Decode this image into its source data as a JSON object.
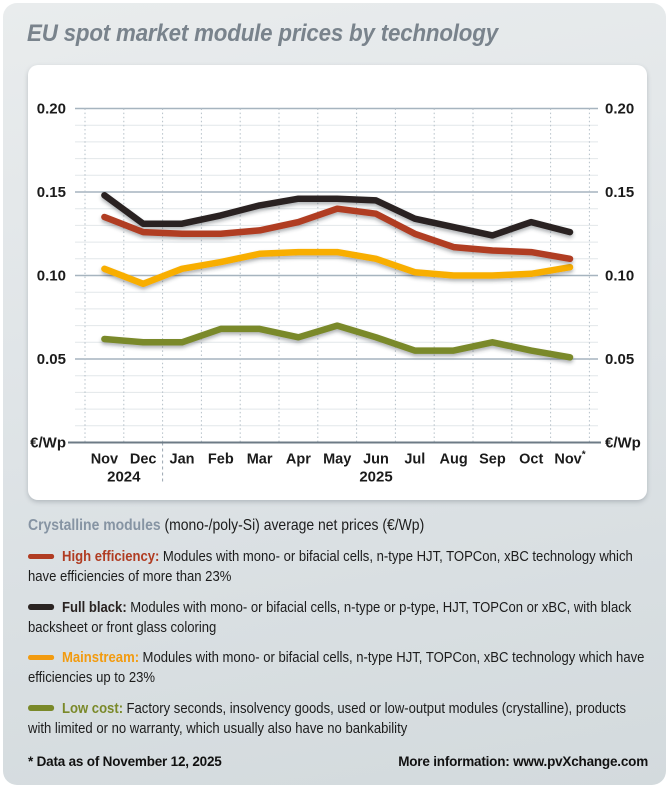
{
  "title": "EU spot market module prices by technology",
  "chart_data": {
    "type": "line",
    "x": [
      "Nov",
      "Dec",
      "Jan",
      "Feb",
      "Mar",
      "Apr",
      "May",
      "Jun",
      "Jul",
      "Aug",
      "Sep",
      "Oct",
      "Nov*"
    ],
    "year_labels": [
      {
        "label": "2024",
        "center_index": 0.5
      },
      {
        "label": "2025",
        "center_index": 7
      }
    ],
    "unit_label": "€/Wp",
    "ylim": [
      0,
      0.2
    ],
    "yticks": [
      0.05,
      0.1,
      0.15,
      0.2
    ],
    "ytick_labels": [
      "0.05",
      "0.10",
      "0.15",
      "0.20"
    ],
    "minor_step": 0.01,
    "grid": "on",
    "series": [
      {
        "name": "High efficiency",
        "color": "#b03c22",
        "values": [
          0.135,
          0.126,
          0.125,
          0.125,
          0.127,
          0.132,
          0.14,
          0.137,
          0.125,
          0.117,
          0.115,
          0.114,
          0.11
        ]
      },
      {
        "name": "Full black",
        "color": "#2a2422",
        "values": [
          0.148,
          0.131,
          0.131,
          0.136,
          0.142,
          0.146,
          0.146,
          0.145,
          0.134,
          0.129,
          0.124,
          0.132,
          0.126
        ]
      },
      {
        "name": "Mainstream",
        "color": "#f8ae00",
        "values": [
          0.104,
          0.095,
          0.104,
          0.108,
          0.113,
          0.114,
          0.114,
          0.11,
          0.102,
          0.1,
          0.1,
          0.101,
          0.105
        ]
      },
      {
        "name": "Low cost",
        "color": "#7a8929",
        "values": [
          0.062,
          0.06,
          0.06,
          0.068,
          0.068,
          0.063,
          0.07,
          0.063,
          0.055,
          0.055,
          0.06,
          0.055,
          0.051
        ]
      }
    ]
  },
  "legend": {
    "header_title": "Crystalline modules",
    "header_rest": " (mono-/poly-Si) average net prices (€/Wp)",
    "items": [
      {
        "label": "High efficiency:",
        "color": "#b03c22",
        "text": "Modules with mono- or bifacial cells, n-type HJT, TOPCon, xBC technology which have efficiencies of more than 23%"
      },
      {
        "label": "Full black:",
        "color": "#2a2422",
        "text": "Modules with mono- or bifacial cells, n-type or p-type, HJT, TOPCon or xBC, with black backsheet or front glass coloring"
      },
      {
        "label": "Mainstream:",
        "color": "#f29b10",
        "text": "Modules with mono- or bifacial cells, n-type HJT, TOPCon, xBC technology which have efficiencies up to 23%"
      },
      {
        "label": "Low cost:",
        "color": "#7a8929",
        "text": "Factory seconds, insolvency goods, used or low-output modules (crystalline), products with limited or no warranty, which usually also have no bankability"
      }
    ]
  },
  "footer": {
    "note": "* Data as of November 12, 2025",
    "more_info": "More information: www.pvXchange.com"
  }
}
